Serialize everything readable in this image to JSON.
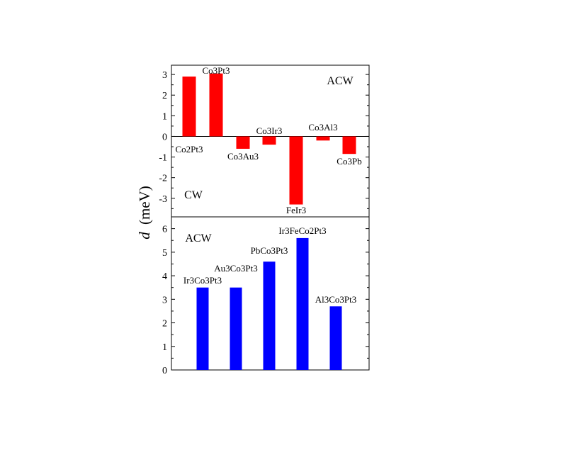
{
  "figure": {
    "ylabel_symbol": "d",
    "ylabel_unit": "(meV)"
  },
  "chart_data": [
    {
      "type": "bar",
      "color": "#ff0000",
      "categories": [
        "Co2Pt3",
        "Co3Pt3",
        "Co3Au3",
        "Co3Ir3",
        "FeIr3",
        "Co3Al3",
        "Co3Pb"
      ],
      "values": [
        2.9,
        3.05,
        -0.6,
        -0.4,
        -3.3,
        -0.2,
        -0.85
      ],
      "ylim": [
        -3.9,
        3.45
      ],
      "yticks": [
        -3,
        -2,
        -1,
        0,
        1,
        2,
        3
      ],
      "annotations": [
        "ACW",
        "CW"
      ],
      "zero_line": true
    },
    {
      "type": "bar",
      "color": "#0000ff",
      "categories": [
        "Ir3Co3Pt3",
        "Au3Co3Pt3",
        "PbCo3Pt3",
        "Ir3FeCo2Pt3",
        "Al3Co3Pt3"
      ],
      "values": [
        3.5,
        3.5,
        4.6,
        5.6,
        2.7
      ],
      "ylim": [
        0,
        6.5
      ],
      "yticks": [
        0,
        1,
        2,
        3,
        4,
        5,
        6
      ],
      "annotations": [
        "ACW"
      ]
    }
  ]
}
